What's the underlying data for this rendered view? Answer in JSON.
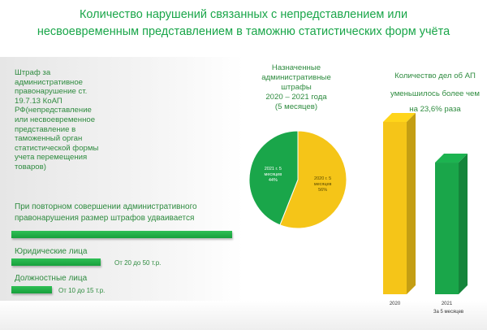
{
  "title_line1": "Количество нарушений связанных с непредставлением или",
  "title_line2": "несвоевременным представлением в таможню статистических форм учёта",
  "fine_text": "Штраф за административное правонарушение ст. 19.7.13 КоАП РФ(непредставление или несвоевременное представление в таможенный орган статистической формы учета перемещения товаров)",
  "repeat_text_line1": "При повторном совершении административного",
  "repeat_text_line2": "правонарушения размер штрафов удваивается",
  "legal_entities_label": "Юридические лица",
  "legal_entities_value": "От 20 до 50 т.р.",
  "officials_label": "Должностные лица",
  "officials_value": "От 10 до 15 т.р.",
  "pie_title_lines": [
    "Назначенные",
    "административные",
    "штрафы",
    "2020 – 2021 года",
    "(5 месяцев)"
  ],
  "right_text_line1": "Количество дел  об АП",
  "right_text_line2": "уменьшилось более  чем",
  "right_text_line3": "на 23,6% раза",
  "colors": {
    "green": "#1aa64a",
    "yellow": "#f5c518",
    "text_green": "#2e8b3f"
  },
  "chart_data": [
    {
      "type": "pie",
      "slices": [
        {
          "label_lines": [
            "2020 г. 5",
            "месяцев",
            "56%"
          ],
          "value": 56,
          "color": "#f5c518"
        },
        {
          "label_lines": [
            "2021 г. 5",
            "месяцев",
            "44%"
          ],
          "value": 44,
          "color": "#1aa64a"
        }
      ]
    },
    {
      "type": "bar",
      "categories": [
        "2020",
        "2021"
      ],
      "category_sublabels": [
        "",
        "За 5 месяцев"
      ],
      "values": [
        100,
        76.4
      ],
      "colors": [
        "#f5c518",
        "#1aa64a"
      ]
    }
  ]
}
